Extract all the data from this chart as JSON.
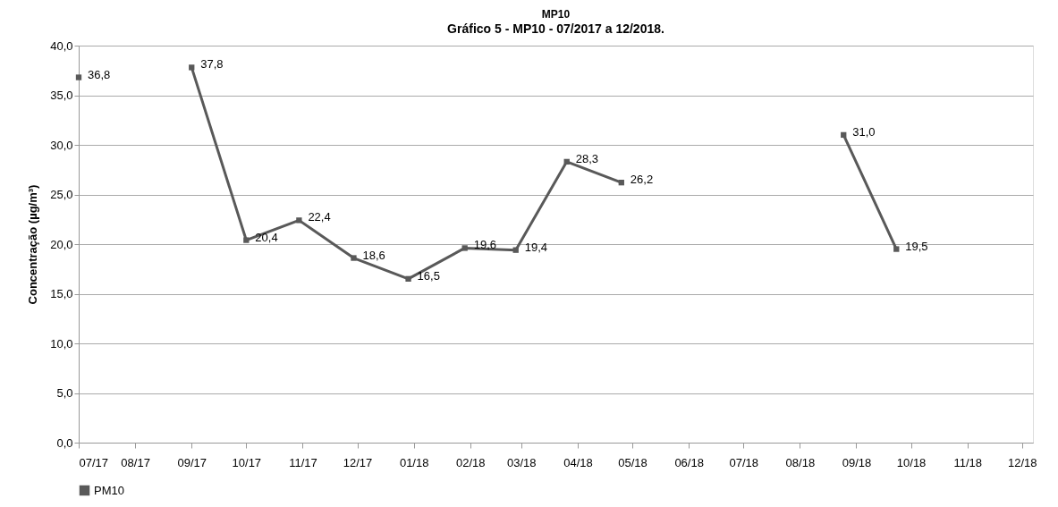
{
  "chart_data": {
    "type": "line",
    "title": "MP10",
    "ylabel": "Concentração (µg/m³)",
    "annotations": [
      "Gráfico 5 - MP10 - 07/2017 a 12/2018."
    ],
    "x": [
      "2017-07-01",
      "2017-08-01",
      "2017-09-01",
      "2017-10-01",
      "2017-10-30",
      "2017-11-29",
      "2017-12-29",
      "2018-01-29",
      "2018-02-26",
      "2018-03-26",
      "2018-04-25",
      "2018-06-15",
      "2018-08-25",
      "2018-09-23"
    ],
    "series": [
      {
        "name": "PM10",
        "color": "#595959",
        "values": [
          36.8,
          null,
          37.8,
          20.4,
          22.4,
          18.6,
          16.5,
          19.6,
          19.4,
          28.3,
          26.2,
          null,
          31.0,
          19.5
        ],
        "value_labels": [
          "36,8",
          null,
          "37,8",
          "20,4",
          "22,4",
          "18,6",
          "16,5",
          "19,6",
          "19,4",
          "28,3",
          "26,2",
          null,
          "31,0",
          "19,5"
        ]
      }
    ],
    "xlim": [
      "2017-07-01",
      "2018-12-07"
    ],
    "xticks": [
      {
        "value": "2017-07-01",
        "label": "07/17"
      },
      {
        "value": "2017-08-01",
        "label": "08/17"
      },
      {
        "value": "2017-09-01",
        "label": "09/17"
      },
      {
        "value": "2017-10-01",
        "label": "10/17"
      },
      {
        "value": "2017-11-01",
        "label": "11/17"
      },
      {
        "value": "2017-12-01",
        "label": "12/17"
      },
      {
        "value": "2018-01-01",
        "label": "01/18"
      },
      {
        "value": "2018-02-01",
        "label": "02/18"
      },
      {
        "value": "2018-03-01",
        "label": "03/18"
      },
      {
        "value": "2018-04-01",
        "label": "04/18"
      },
      {
        "value": "2018-05-01",
        "label": "05/18"
      },
      {
        "value": "2018-06-01",
        "label": "06/18"
      },
      {
        "value": "2018-07-01",
        "label": "07/18"
      },
      {
        "value": "2018-08-01",
        "label": "08/18"
      },
      {
        "value": "2018-09-01",
        "label": "09/18"
      },
      {
        "value": "2018-10-01",
        "label": "10/18"
      },
      {
        "value": "2018-11-01",
        "label": "11/18"
      },
      {
        "value": "2018-12-01",
        "label": "12/18"
      }
    ],
    "ylim": [
      0,
      40
    ],
    "yticks": [
      {
        "value": 0,
        "label": "0,0"
      },
      {
        "value": 5,
        "label": "5,0"
      },
      {
        "value": 10,
        "label": "10,0"
      },
      {
        "value": 15,
        "label": "15,0"
      },
      {
        "value": 20,
        "label": "20,0"
      },
      {
        "value": 25,
        "label": "25,0"
      },
      {
        "value": 30,
        "label": "30,0"
      },
      {
        "value": 35,
        "label": "35,0"
      },
      {
        "value": 40,
        "label": "40,0"
      }
    ],
    "grid": "y",
    "legend": "bottom",
    "marker": "square",
    "line_style": "solid"
  }
}
